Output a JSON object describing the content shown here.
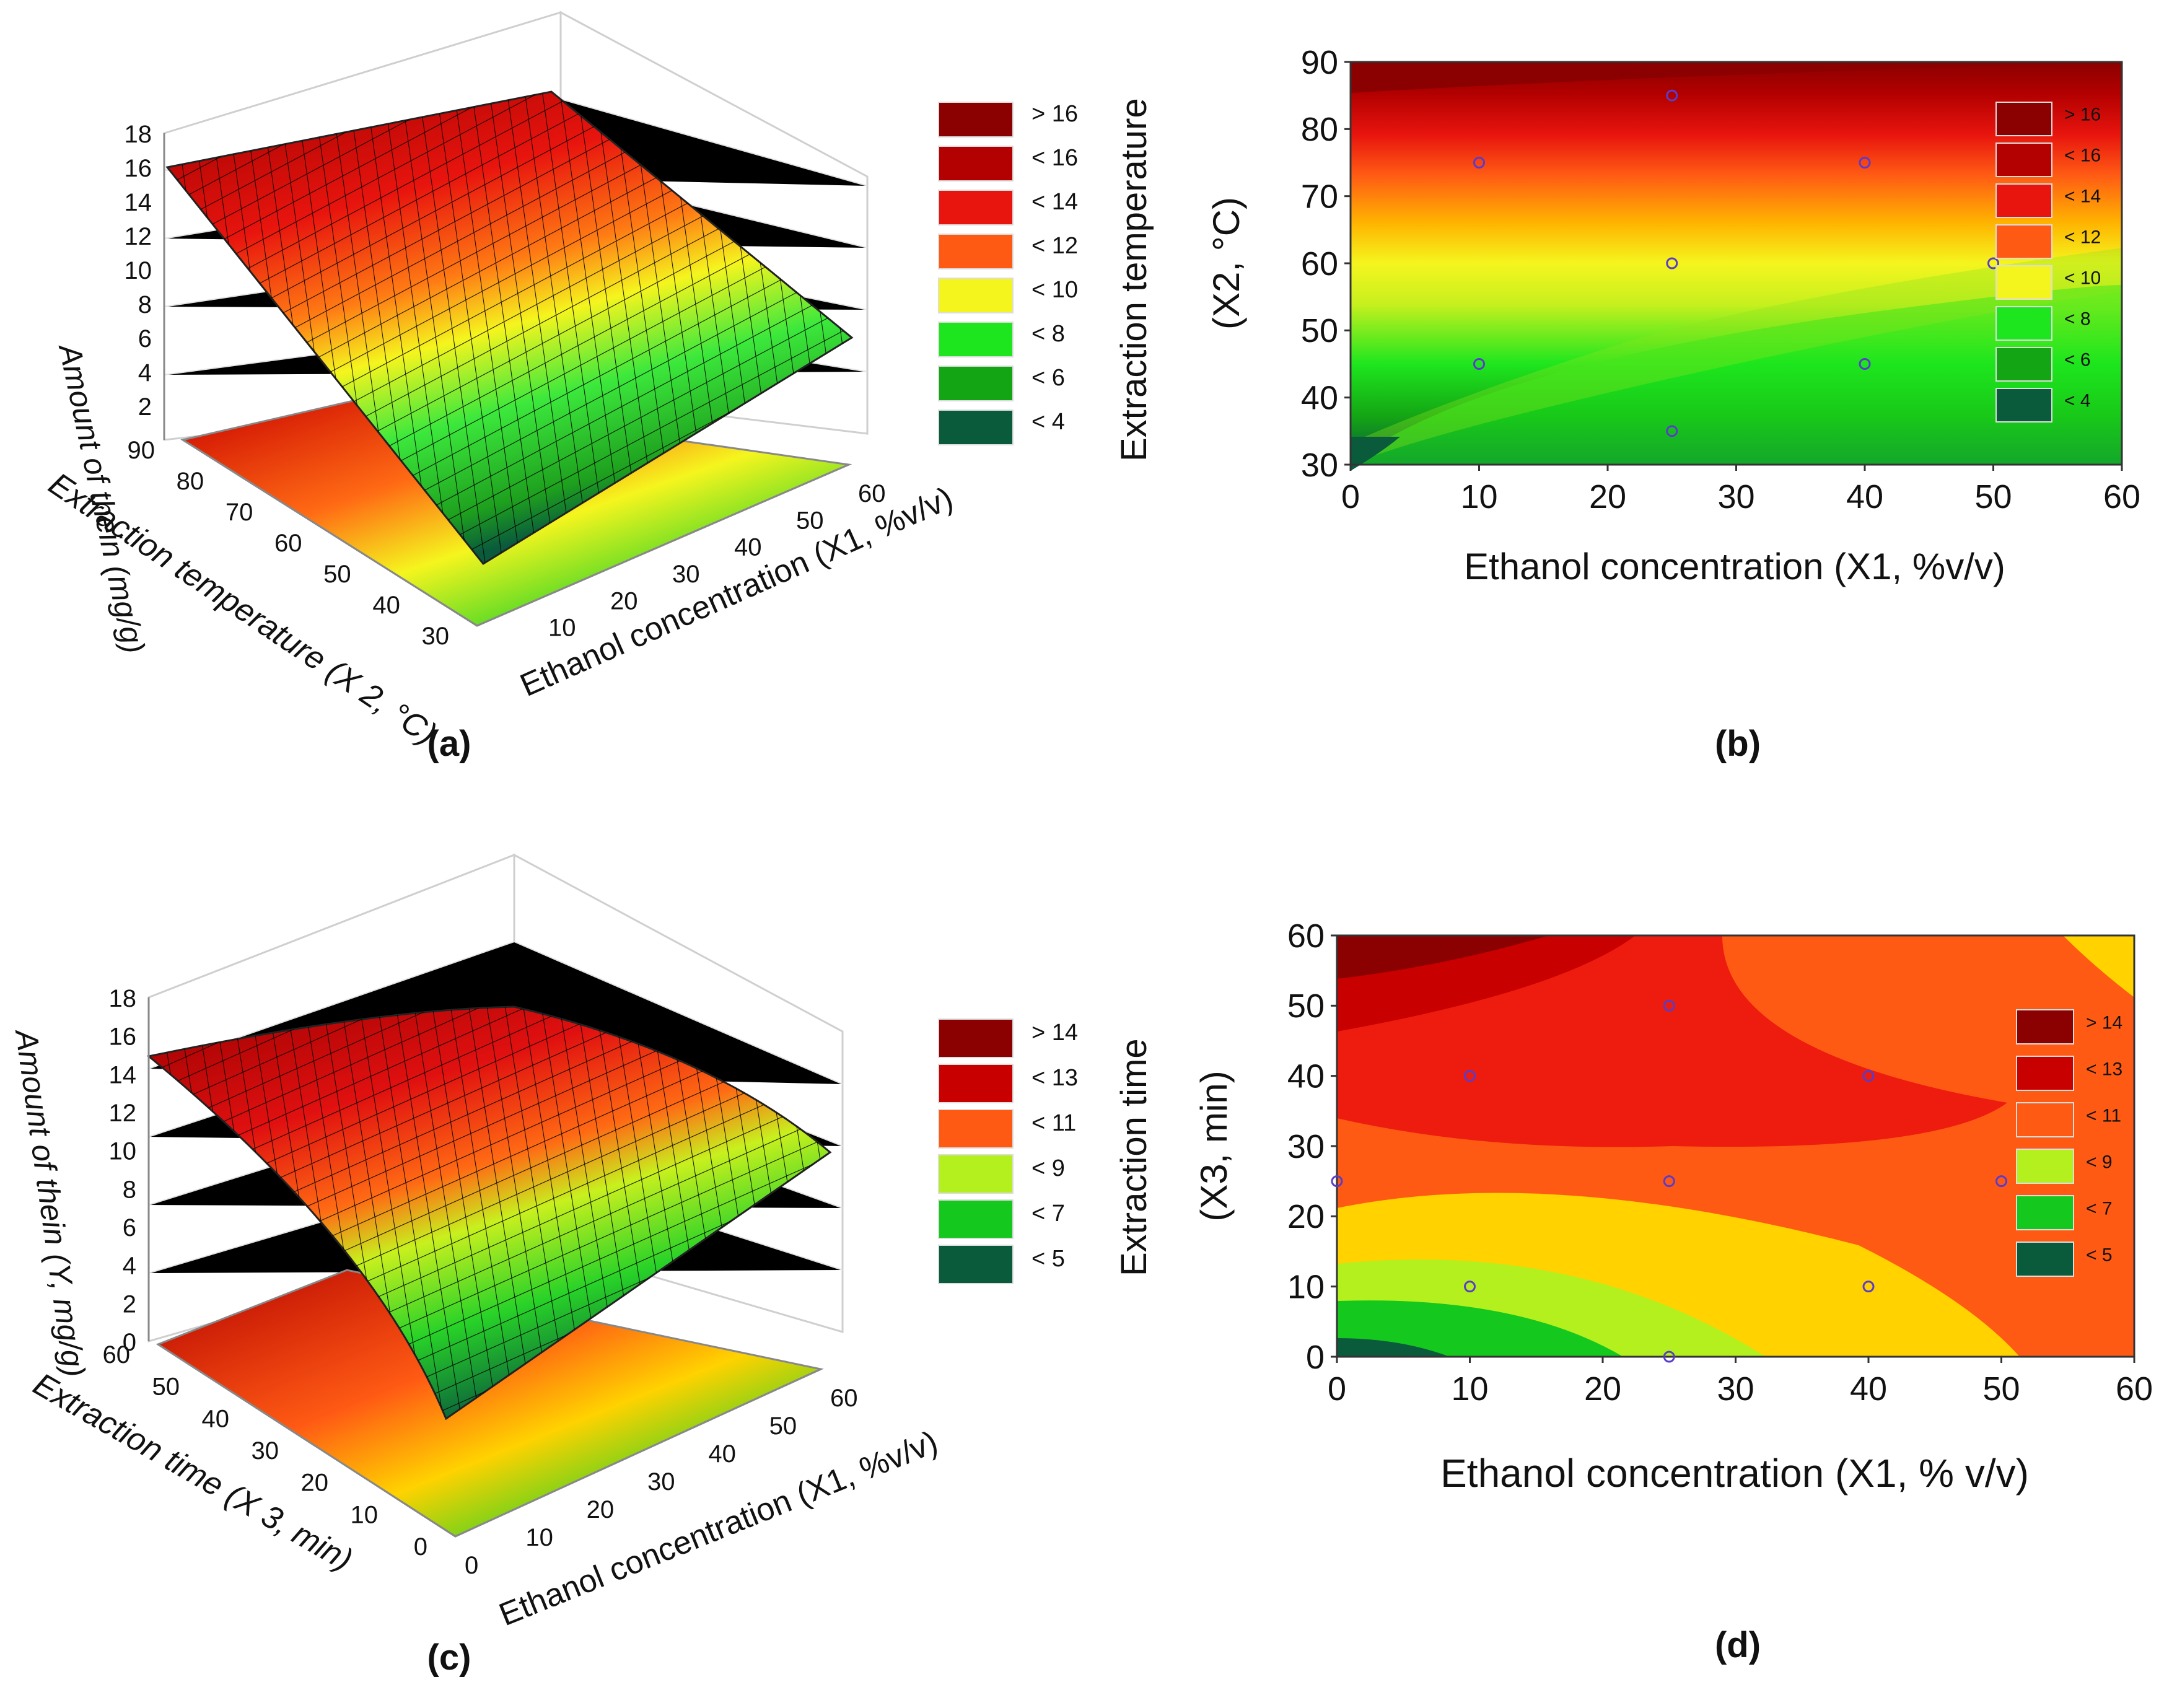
{
  "figure": {
    "panel_labels": [
      "(a)",
      "(b)",
      "(c)",
      "(d)"
    ]
  },
  "chart_data": [
    {
      "id": "a",
      "type": "surface3d",
      "zlabel": "Amount of thein (mg/g)",
      "xlabel": "Ethanol concentration (X1, %v/v)",
      "ylabel": "Extraction temperature (X 2, °C)",
      "x_ticks": [
        10,
        20,
        30,
        40,
        50,
        60
      ],
      "x_range": [
        0,
        60
      ],
      "y_ticks": [
        30,
        40,
        50,
        60,
        70,
        80,
        90
      ],
      "y_range": [
        30,
        90
      ],
      "z_ticks": [
        2,
        4,
        6,
        8,
        10,
        12,
        14,
        16,
        18
      ],
      "z_range": [
        0,
        18
      ],
      "legend_title": "Extraction temperature",
      "legend": [
        {
          "label": "> 16",
          "color": "#8b0000"
        },
        {
          "label": "< 16",
          "color": "#b30000"
        },
        {
          "label": "< 14",
          "color": "#e8140e"
        },
        {
          "label": "< 12",
          "color": "#ff5a14"
        },
        {
          "label": "< 10",
          "color": "#f5f51e"
        },
        {
          "label": "< 8",
          "color": "#1ee61e"
        },
        {
          "label": "< 6",
          "color": "#14a514"
        },
        {
          "label": "< 4",
          "color": "#0a5a3c"
        }
      ]
    },
    {
      "id": "b",
      "type": "contour",
      "xlabel": "Ethanol concentration (X1,  %v/v)",
      "ylabel": "(X2, °C)",
      "x_ticks": [
        0,
        10,
        20,
        30,
        40,
        50,
        60
      ],
      "x_range": [
        0,
        60
      ],
      "y_ticks": [
        30,
        40,
        50,
        60,
        70,
        80,
        90
      ],
      "y_range": [
        30,
        90
      ],
      "design_points": [
        {
          "x": 10,
          "y": 75
        },
        {
          "x": 25,
          "y": 85
        },
        {
          "x": 40,
          "y": 75
        },
        {
          "x": 25,
          "y": 60
        },
        {
          "x": 50,
          "y": 60
        },
        {
          "x": 10,
          "y": 45
        },
        {
          "x": 40,
          "y": 45
        },
        {
          "x": 25,
          "y": 35
        }
      ],
      "legend": [
        {
          "label": "> 16",
          "color": "#8b0000"
        },
        {
          "label": "< 16",
          "color": "#b30000"
        },
        {
          "label": "< 14",
          "color": "#e8140e"
        },
        {
          "label": "< 12",
          "color": "#ff5a14"
        },
        {
          "label": "< 10",
          "color": "#f5f51e"
        },
        {
          "label": "< 8",
          "color": "#1ee61e"
        },
        {
          "label": "< 6",
          "color": "#14a514"
        },
        {
          "label": "< 4",
          "color": "#0a5a3c"
        }
      ]
    },
    {
      "id": "c",
      "type": "surface3d",
      "zlabel": "Amount of thein (Y, mg/g)",
      "xlabel": "Ethanol concentration (X1, %v/v)",
      "ylabel": "Extraction time (X 3, min)",
      "x_ticks": [
        0,
        10,
        20,
        30,
        40,
        50,
        60
      ],
      "x_range": [
        0,
        60
      ],
      "y_ticks": [
        0,
        10,
        20,
        30,
        40,
        50,
        60
      ],
      "y_range": [
        0,
        60
      ],
      "z_ticks": [
        0,
        2,
        4,
        6,
        8,
        10,
        12,
        14,
        16,
        18
      ],
      "z_range": [
        0,
        18
      ],
      "legend_title": "Extraction time",
      "legend": [
        {
          "label": "> 14",
          "color": "#8b0000"
        },
        {
          "label": "< 13",
          "color": "#c80000"
        },
        {
          "label": "< 11",
          "color": "#ff5a14"
        },
        {
          "label": "< 9",
          "color": "#b4f01e"
        },
        {
          "label": "< 7",
          "color": "#14c81e"
        },
        {
          "label": "< 5",
          "color": "#0a5a3c"
        }
      ]
    },
    {
      "id": "d",
      "type": "contour",
      "xlabel": "Ethanol concentration (X1, % v/v)",
      "ylabel": "(X3, min)",
      "x_ticks": [
        0,
        10,
        20,
        30,
        40,
        50,
        60
      ],
      "x_range": [
        0,
        60
      ],
      "y_ticks": [
        0,
        10,
        20,
        30,
        40,
        50,
        60
      ],
      "y_range": [
        0,
        60
      ],
      "design_points": [
        {
          "x": 25,
          "y": 50
        },
        {
          "x": 10,
          "y": 40
        },
        {
          "x": 40,
          "y": 40
        },
        {
          "x": 0,
          "y": 25
        },
        {
          "x": 25,
          "y": 25
        },
        {
          "x": 50,
          "y": 25
        },
        {
          "x": 10,
          "y": 10
        },
        {
          "x": 40,
          "y": 10
        },
        {
          "x": 25,
          "y": 0
        }
      ],
      "legend": [
        {
          "label": "> 14",
          "color": "#8b0000"
        },
        {
          "label": "< 13",
          "color": "#c80000"
        },
        {
          "label": "< 11",
          "color": "#ff5a14"
        },
        {
          "label": "< 9",
          "color": "#b4f01e"
        },
        {
          "label": "< 7",
          "color": "#14c81e"
        },
        {
          "label": "< 5",
          "color": "#0a5a3c"
        }
      ]
    }
  ]
}
